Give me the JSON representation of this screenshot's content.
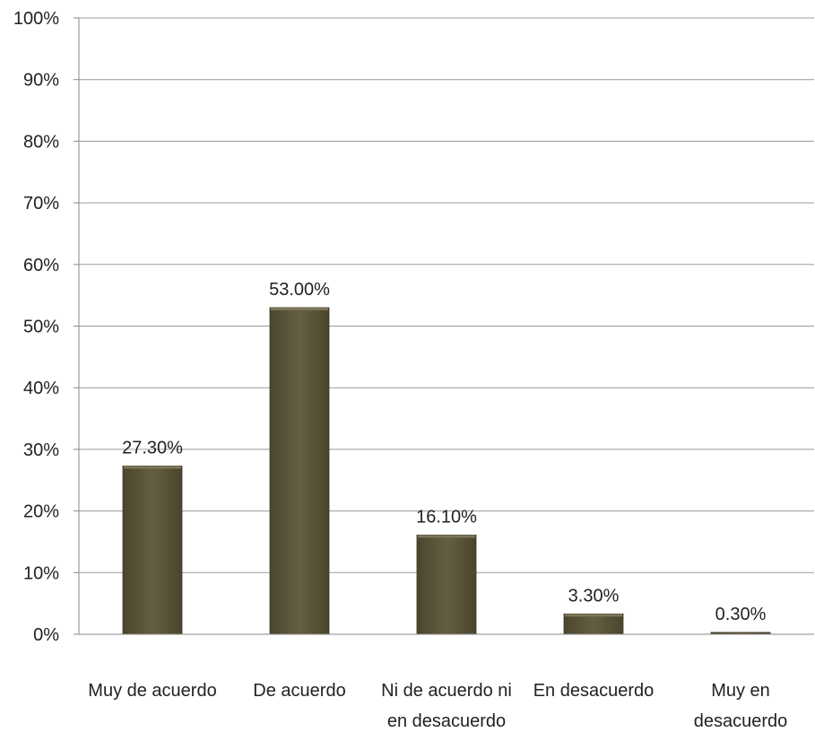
{
  "chart_data": {
    "type": "bar",
    "categories": [
      "Muy de acuerdo",
      "De acuerdo",
      "Ni de acuerdo ni en desacuerdo",
      "En desacuerdo",
      "Muy en desacuerdo"
    ],
    "category_lines": [
      [
        "Muy de acuerdo"
      ],
      [
        "De acuerdo"
      ],
      [
        "Ni de acuerdo ni",
        "en desacuerdo"
      ],
      [
        "En desacuerdo"
      ],
      [
        "Muy en",
        "desacuerdo"
      ]
    ],
    "values": [
      27.3,
      53.0,
      16.1,
      3.3,
      0.3
    ],
    "data_labels": [
      "27.30%",
      "53.00%",
      "16.10%",
      "3.30%",
      "0.30%"
    ],
    "ylim": [
      0,
      100
    ],
    "yticks": [
      0,
      10,
      20,
      30,
      40,
      50,
      60,
      70,
      80,
      90,
      100
    ],
    "ytick_labels": [
      "0%",
      "10%",
      "20%",
      "30%",
      "40%",
      "50%",
      "60%",
      "70%",
      "80%",
      "90%",
      "100%"
    ],
    "grid": true,
    "legend": "none",
    "bar_color": "#5a5438",
    "grid_color": "#9a9a9a"
  }
}
